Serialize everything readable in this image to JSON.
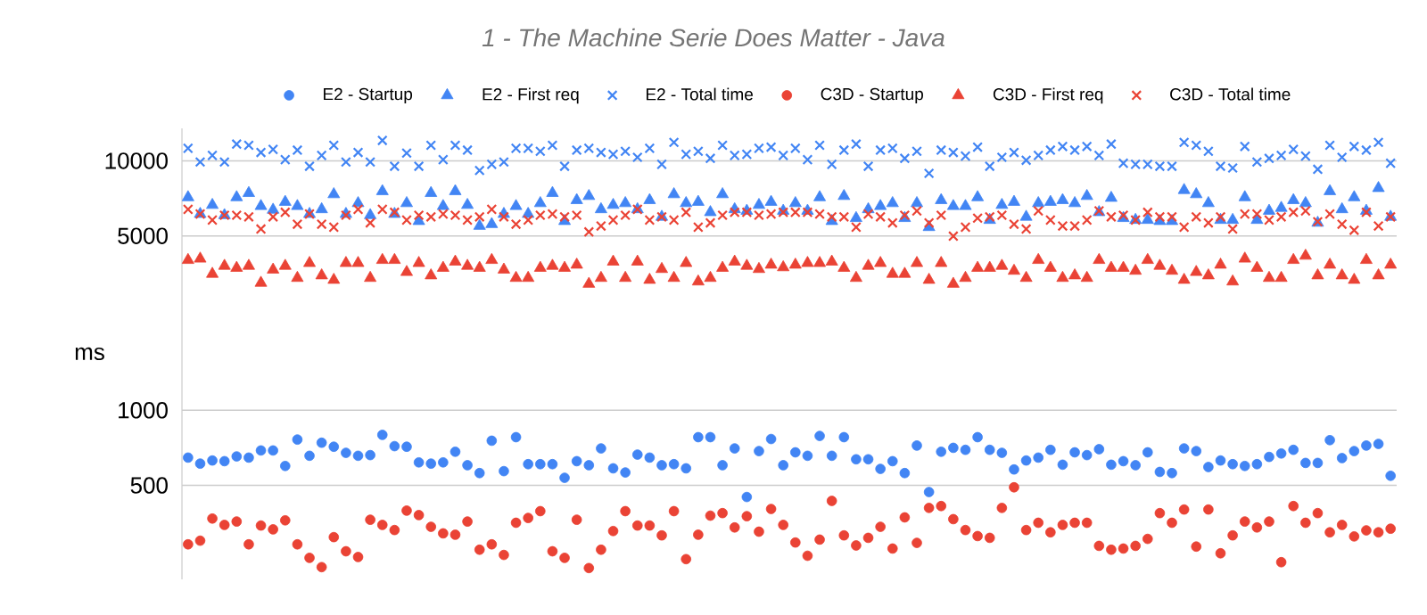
{
  "chart_data": {
    "type": "scatter",
    "title": "1 - The Machine Serie Does Matter - Java",
    "ylabel": "ms",
    "log": true,
    "grid": "y",
    "legend": "top",
    "ylim": [
      210,
      13500
    ],
    "yticks": [
      500,
      1000,
      5000,
      10000
    ],
    "categories": [
      null,
      null,
      null,
      null,
      null,
      null,
      null,
      null,
      null,
      null,
      null,
      null,
      null,
      null,
      null,
      null,
      null,
      null,
      null,
      null,
      null,
      null,
      null,
      null,
      null,
      null,
      null,
      null,
      null,
      null,
      null,
      null,
      null,
      null,
      null,
      null,
      null,
      null,
      null,
      null,
      null,
      null,
      null,
      null,
      null,
      null,
      null,
      null,
      null,
      null,
      null,
      null,
      null,
      null,
      null,
      null,
      null,
      null,
      null,
      null,
      null,
      null,
      null,
      null,
      null,
      null,
      null,
      null,
      null,
      null,
      null,
      null,
      null,
      null,
      null,
      null,
      null,
      null,
      null,
      null,
      null,
      null,
      null,
      null,
      null,
      null,
      null,
      null,
      null,
      null,
      null,
      null,
      null,
      null,
      null,
      null,
      null,
      null,
      null,
      null
    ],
    "series": [
      {
        "name": "E2 - Startup",
        "color": "#4285f4",
        "marker": "circle",
        "values": [
          646,
          611,
          629,
          625,
          653,
          646,
          690,
          690,
          598,
          763,
          657,
          741,
          714,
          675,
          657,
          661,
          797,
          718,
          714,
          618,
          611,
          618,
          682,
          602,
          560,
          755,
          570,
          780,
          608,
          608,
          608,
          536,
          625,
          602,
          703,
          585,
          563,
          664,
          646,
          602,
          608,
          585,
          780,
          780,
          602,
          703,
          449,
          686,
          767,
          602,
          678,
          657,
          789,
          657,
          780,
          636,
          636,
          582,
          625,
          560,
          722,
          470,
          682,
          707,
          694,
          780,
          694,
          675,
          579,
          629,
          646,
          694,
          605,
          678,
          661,
          698,
          605,
          625,
          602,
          678,
          566,
          560,
          703,
          686,
          592,
          629,
          608,
          598,
          608,
          650,
          671,
          694,
          615,
          615,
          759,
          643,
          686,
          722,
          733,
          546
        ]
      },
      {
        "name": "E2 - First req",
        "color": "#4285f4",
        "marker": "triangle",
        "values": [
          7140,
          6120,
          6650,
          6050,
          7140,
          7420,
          6580,
          6360,
          6840,
          6580,
          6120,
          6390,
          7340,
          6120,
          6760,
          6050,
          7550,
          6120,
          6760,
          5730,
          7420,
          6580,
          7550,
          6650,
          5480,
          5570,
          6120,
          6580,
          6120,
          6760,
          7420,
          5730,
          6950,
          7220,
          6390,
          6650,
          6760,
          6390,
          6950,
          5960,
          7340,
          6760,
          6840,
          6220,
          7340,
          6390,
          6300,
          6650,
          6840,
          6300,
          6760,
          6300,
          7140,
          5730,
          7220,
          5890,
          6390,
          6580,
          6760,
          5890,
          6760,
          5420,
          6950,
          6580,
          6580,
          7140,
          5790,
          6650,
          6840,
          5960,
          6760,
          6840,
          6950,
          6760,
          7220,
          6220,
          7100,
          5890,
          5790,
          5790,
          5730,
          5730,
          7630,
          7340,
          6760,
          5790,
          5790,
          7140,
          5790,
          6300,
          6470,
          6950,
          6760,
          5640,
          7550,
          6390,
          7140,
          6300,
          7770,
          5960
        ]
      },
      {
        "name": "E2 - Total time",
        "color": "#4285f4",
        "marker": "cross",
        "values": [
          11230,
          9890,
          10510,
          9890,
          11670,
          11540,
          10800,
          11110,
          10110,
          11040,
          9510,
          10510,
          11540,
          9890,
          10800,
          9890,
          12070,
          9510,
          10740,
          9510,
          11540,
          10110,
          11540,
          11040,
          9150,
          9680,
          9890,
          11230,
          11230,
          10920,
          11540,
          9510,
          11040,
          11230,
          10800,
          10620,
          10920,
          10330,
          11230,
          9680,
          11860,
          10620,
          10920,
          10230,
          11540,
          10510,
          10620,
          11230,
          11350,
          10510,
          11230,
          10110,
          11540,
          9680,
          11040,
          11670,
          9510,
          11040,
          11230,
          10230,
          10920,
          8910,
          11040,
          10800,
          10450,
          11350,
          9510,
          10330,
          10800,
          10050,
          10510,
          11040,
          11420,
          11040,
          11420,
          10510,
          11670,
          9780,
          9680,
          9680,
          9510,
          9510,
          11860,
          11540,
          10920,
          9510,
          9360,
          11420,
          9890,
          10230,
          10510,
          11110,
          10450,
          9250,
          11540,
          10330,
          11420,
          11040,
          11860,
          9780
        ]
      },
      {
        "name": "C3D - Startup",
        "color": "#ea4335",
        "marker": "circle",
        "values": [
          290,
          300,
          368,
          347,
          358,
          290,
          345,
          333,
          362,
          290,
          256,
          235,
          310,
          272,
          258,
          364,
          347,
          331,
          396,
          380,
          341,
          321,
          317,
          358,
          276,
          290,
          263,
          354,
          370,
          394,
          272,
          256,
          364,
          233,
          276,
          328,
          394,
          345,
          345,
          315,
          394,
          253,
          317,
          378,
          387,
          339,
          376,
          326,
          402,
          347,
          295,
          261,
          303,
          433,
          315,
          287,
          308,
          341,
          279,
          372,
          294,
          406,
          413,
          366,
          331,
          313,
          308,
          406,
          491,
          331,
          354,
          324,
          347,
          354,
          354,
          286,
          276,
          279,
          286,
          305,
          387,
          354,
          400,
          284,
          400,
          267,
          315,
          358,
          339,
          358,
          246,
          413,
          354,
          387,
          324,
          347,
          312,
          330,
          324,
          335
        ]
      },
      {
        "name": "C3D - First req",
        "color": "#ea4335",
        "marker": "triangle",
        "values": [
          4000,
          4050,
          3520,
          3790,
          3720,
          3790,
          3240,
          3660,
          3790,
          3390,
          3890,
          3470,
          3330,
          3890,
          3890,
          3390,
          4000,
          4000,
          3580,
          3890,
          3470,
          3720,
          3940,
          3790,
          3720,
          4000,
          3660,
          3390,
          3390,
          3720,
          3790,
          3720,
          3830,
          3210,
          3390,
          3940,
          3390,
          3940,
          3330,
          3680,
          3390,
          3890,
          3280,
          3390,
          3720,
          3940,
          3790,
          3680,
          3830,
          3740,
          3830,
          3890,
          3890,
          3940,
          3720,
          3390,
          3790,
          3890,
          3520,
          3520,
          3890,
          3330,
          3890,
          3210,
          3390,
          3720,
          3720,
          3790,
          3620,
          3390,
          4000,
          3720,
          3390,
          3470,
          3390,
          4000,
          3720,
          3720,
          3620,
          4000,
          3790,
          3620,
          3330,
          3580,
          3470,
          3830,
          3280,
          4050,
          3720,
          3390,
          3390,
          4000,
          4160,
          3470,
          3830,
          3470,
          3330,
          4000,
          3470,
          3830
        ]
      },
      {
        "name": "C3D - Total time",
        "color": "#ea4335",
        "marker": "cross",
        "values": [
          6390,
          6120,
          5790,
          6050,
          6050,
          5960,
          5330,
          5960,
          6220,
          5570,
          6120,
          5570,
          5420,
          6050,
          6390,
          5640,
          6390,
          6220,
          5790,
          6050,
          5960,
          6120,
          6050,
          5790,
          5960,
          6390,
          5960,
          5570,
          5790,
          6050,
          6120,
          5960,
          6050,
          5190,
          5480,
          5790,
          6050,
          6390,
          5790,
          5960,
          5790,
          6220,
          5420,
          5640,
          6050,
          6220,
          6220,
          6050,
          6120,
          6220,
          6220,
          6220,
          6120,
          5960,
          5960,
          5420,
          6120,
          5960,
          5640,
          6050,
          6300,
          5640,
          6050,
          4990,
          5420,
          5890,
          5960,
          6050,
          5570,
          5330,
          6300,
          5790,
          5480,
          5480,
          5790,
          6300,
          5960,
          6050,
          5790,
          6220,
          5960,
          5960,
          5420,
          5960,
          5640,
          5960,
          5330,
          6120,
          6120,
          5790,
          5960,
          6220,
          6300,
          5700,
          6120,
          5570,
          5270,
          6220,
          5480,
          5960
        ]
      }
    ]
  }
}
